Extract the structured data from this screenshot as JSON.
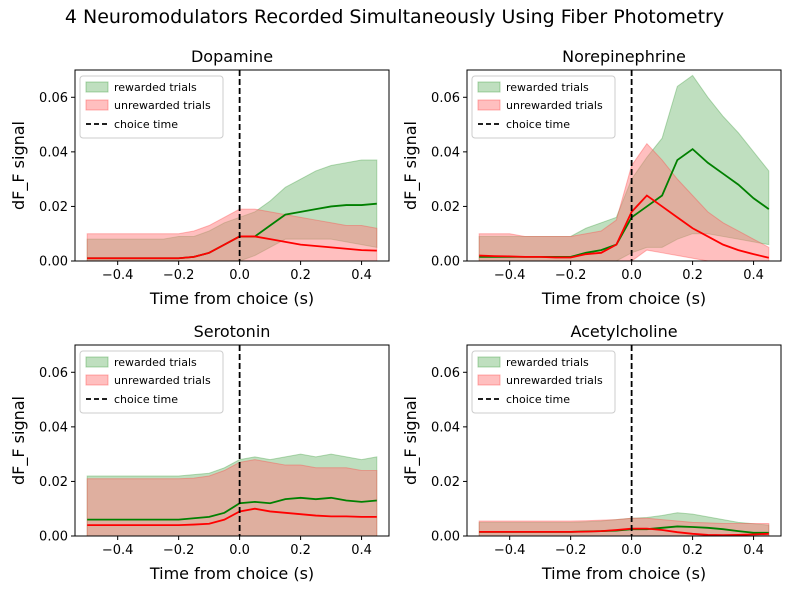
{
  "figure": {
    "suptitle": "4 Neuromodulators Recorded Simultaneously Using Fiber Photometry"
  },
  "colors": {
    "rewarded_line": "#008000",
    "rewarded_fill": "#7fc07f",
    "unrewarded_line": "#ff0000",
    "unrewarded_fill": "#ff8080",
    "choice_line": "#000000"
  },
  "chart_data": [
    {
      "type": "line",
      "title": "Dopamine",
      "xlabel": "Time from choice (s)",
      "ylabel": "dF_F signal",
      "xlim": [
        -0.54,
        0.49
      ],
      "ylim": [
        0,
        0.07
      ],
      "xticks": [
        "−0.4",
        "−0.2",
        "0.0",
        "0.2",
        "0.4"
      ],
      "yticks": [
        "0.00",
        "0.02",
        "0.04",
        "0.06"
      ],
      "grid": false,
      "legend": [
        "rewarded trials",
        "unrewarded trials",
        "choice time"
      ],
      "legend_position": "upper-left",
      "choice_time": 0,
      "x": [
        -0.5,
        -0.45,
        -0.4,
        -0.35,
        -0.3,
        -0.25,
        -0.2,
        -0.15,
        -0.1,
        -0.05,
        0,
        0.05,
        0.1,
        0.15,
        0.2,
        0.25,
        0.3,
        0.35,
        0.4,
        0.45
      ],
      "series": [
        {
          "name": "rewarded trials",
          "mean": [
            0.001,
            0.001,
            0.001,
            0.001,
            0.001,
            0.001,
            0.001,
            0.0015,
            0.003,
            0.006,
            0.009,
            0.009,
            0.013,
            0.017,
            0.018,
            0.019,
            0.02,
            0.0205,
            0.0205,
            0.021
          ],
          "upper": [
            0.008,
            0.008,
            0.008,
            0.008,
            0.008,
            0.008,
            0.009,
            0.009,
            0.011,
            0.014,
            0.016,
            0.018,
            0.022,
            0.027,
            0.03,
            0.033,
            0.035,
            0.036,
            0.037,
            0.037
          ],
          "lower": [
            0,
            0,
            0,
            0,
            0,
            0,
            0,
            0,
            0,
            0,
            0,
            0.002,
            0.005,
            0.008,
            0.008,
            0.008,
            0.008,
            0.007,
            0.006,
            0.005
          ]
        },
        {
          "name": "unrewarded trials",
          "mean": [
            0.001,
            0.001,
            0.001,
            0.001,
            0.001,
            0.001,
            0.001,
            0.0015,
            0.003,
            0.006,
            0.009,
            0.009,
            0.008,
            0.007,
            0.006,
            0.0055,
            0.005,
            0.0045,
            0.004,
            0.0038
          ],
          "upper": [
            0.01,
            0.01,
            0.01,
            0.01,
            0.01,
            0.01,
            0.01,
            0.011,
            0.013,
            0.016,
            0.019,
            0.019,
            0.018,
            0.017,
            0.016,
            0.015,
            0.014,
            0.013,
            0.013,
            0.012
          ],
          "lower": [
            0,
            0,
            0,
            0,
            0,
            0,
            0,
            0,
            0,
            0,
            0,
            0,
            0,
            0,
            0,
            0,
            0,
            0,
            0,
            0
          ]
        }
      ]
    },
    {
      "type": "line",
      "title": "Norepinephrine",
      "xlabel": "Time from choice (s)",
      "ylabel": "dF_F signal",
      "xlim": [
        -0.54,
        0.49
      ],
      "ylim": [
        0,
        0.07
      ],
      "xticks": [
        "−0.4",
        "−0.2",
        "0.0",
        "0.2",
        "0.4"
      ],
      "yticks": [
        "0.00",
        "0.02",
        "0.04",
        "0.06"
      ],
      "grid": false,
      "legend": [
        "rewarded trials",
        "unrewarded trials",
        "choice time"
      ],
      "legend_position": "upper-left",
      "choice_time": 0,
      "x": [
        -0.5,
        -0.45,
        -0.4,
        -0.35,
        -0.3,
        -0.25,
        -0.2,
        -0.15,
        -0.1,
        -0.05,
        0,
        0.05,
        0.1,
        0.15,
        0.2,
        0.25,
        0.3,
        0.35,
        0.4,
        0.45
      ],
      "series": [
        {
          "name": "rewarded trials",
          "mean": [
            0.0015,
            0.0015,
            0.0015,
            0.0015,
            0.0015,
            0.0015,
            0.0015,
            0.003,
            0.004,
            0.006,
            0.016,
            0.02,
            0.024,
            0.037,
            0.041,
            0.036,
            0.032,
            0.028,
            0.023,
            0.019
          ],
          "upper": [
            0.009,
            0.009,
            0.009,
            0.009,
            0.009,
            0.009,
            0.009,
            0.012,
            0.014,
            0.016,
            0.03,
            0.038,
            0.045,
            0.064,
            0.068,
            0.06,
            0.053,
            0.047,
            0.04,
            0.033
          ],
          "lower": [
            0,
            0,
            0,
            0,
            0,
            0,
            0,
            0,
            0,
            0,
            0.003,
            0.005,
            0.005,
            0.008,
            0.01,
            0.01,
            0.009,
            0.008,
            0.007,
            0.006
          ]
        },
        {
          "name": "unrewarded trials",
          "mean": [
            0.002,
            0.0018,
            0.0017,
            0.0015,
            0.0015,
            0.0013,
            0.0013,
            0.0025,
            0.003,
            0.006,
            0.018,
            0.024,
            0.02,
            0.016,
            0.012,
            0.009,
            0.006,
            0.004,
            0.0025,
            0.0012
          ],
          "upper": [
            0.01,
            0.01,
            0.01,
            0.009,
            0.009,
            0.009,
            0.009,
            0.01,
            0.011,
            0.015,
            0.035,
            0.043,
            0.037,
            0.03,
            0.024,
            0.018,
            0.014,
            0.011,
            0.008,
            0.005
          ],
          "lower": [
            0,
            0,
            0,
            0,
            0,
            0,
            0,
            0,
            0,
            0,
            0,
            0.004,
            0.003,
            0.002,
            0.001,
            0,
            0,
            0,
            0,
            0
          ]
        }
      ]
    },
    {
      "type": "line",
      "title": "Serotonin",
      "xlabel": "Time from choice (s)",
      "ylabel": "dF_F signal",
      "xlim": [
        -0.54,
        0.49
      ],
      "ylim": [
        0,
        0.07
      ],
      "xticks": [
        "−0.4",
        "−0.2",
        "0.0",
        "0.2",
        "0.4"
      ],
      "yticks": [
        "0.00",
        "0.02",
        "0.04",
        "0.06"
      ],
      "grid": false,
      "legend": [
        "rewarded trials",
        "unrewarded trials",
        "choice time"
      ],
      "legend_position": "upper-left",
      "choice_time": 0,
      "x": [
        -0.5,
        -0.45,
        -0.4,
        -0.35,
        -0.3,
        -0.25,
        -0.2,
        -0.15,
        -0.1,
        -0.05,
        0,
        0.05,
        0.1,
        0.15,
        0.2,
        0.25,
        0.3,
        0.35,
        0.4,
        0.45
      ],
      "series": [
        {
          "name": "rewarded trials",
          "mean": [
            0.006,
            0.006,
            0.006,
            0.006,
            0.006,
            0.006,
            0.006,
            0.0065,
            0.007,
            0.0085,
            0.012,
            0.0125,
            0.012,
            0.0135,
            0.014,
            0.0135,
            0.014,
            0.013,
            0.0125,
            0.013
          ],
          "upper": [
            0.022,
            0.022,
            0.022,
            0.022,
            0.022,
            0.022,
            0.022,
            0.0225,
            0.023,
            0.025,
            0.028,
            0.029,
            0.028,
            0.029,
            0.03,
            0.029,
            0.03,
            0.029,
            0.028,
            0.029
          ],
          "lower": [
            0,
            0,
            0,
            0,
            0,
            0,
            0,
            0,
            0,
            0,
            0,
            0,
            0,
            0,
            0,
            0,
            0,
            0,
            0,
            0
          ]
        },
        {
          "name": "unrewarded trials",
          "mean": [
            0.004,
            0.004,
            0.004,
            0.004,
            0.004,
            0.004,
            0.004,
            0.0042,
            0.0045,
            0.006,
            0.009,
            0.01,
            0.009,
            0.0085,
            0.008,
            0.0075,
            0.0072,
            0.0072,
            0.007,
            0.007
          ],
          "upper": [
            0.021,
            0.021,
            0.021,
            0.021,
            0.021,
            0.021,
            0.021,
            0.0212,
            0.022,
            0.024,
            0.027,
            0.028,
            0.027,
            0.026,
            0.026,
            0.025,
            0.025,
            0.025,
            0.024,
            0.024
          ],
          "lower": [
            0,
            0,
            0,
            0,
            0,
            0,
            0,
            0,
            0,
            0,
            0,
            0,
            0,
            0,
            0,
            0,
            0,
            0,
            0,
            0
          ]
        }
      ]
    },
    {
      "type": "line",
      "title": "Acetylcholine",
      "xlabel": "Time from choice (s)",
      "ylabel": "dF_F signal",
      "xlim": [
        -0.54,
        0.49
      ],
      "ylim": [
        0,
        0.07
      ],
      "xticks": [
        "−0.4",
        "−0.2",
        "0.0",
        "0.2",
        "0.4"
      ],
      "yticks": [
        "0.00",
        "0.02",
        "0.04",
        "0.06"
      ],
      "grid": false,
      "legend": [
        "rewarded trials",
        "unrewarded trials",
        "choice time"
      ],
      "legend_position": "upper-left",
      "choice_time": 0,
      "x": [
        -0.5,
        -0.45,
        -0.4,
        -0.35,
        -0.3,
        -0.25,
        -0.2,
        -0.15,
        -0.1,
        -0.05,
        0,
        0.05,
        0.1,
        0.15,
        0.2,
        0.25,
        0.3,
        0.35,
        0.4,
        0.45
      ],
      "series": [
        {
          "name": "rewarded trials",
          "mean": [
            0.0015,
            0.0015,
            0.0015,
            0.0015,
            0.0015,
            0.0015,
            0.0015,
            0.0017,
            0.0018,
            0.002,
            0.0025,
            0.0025,
            0.003,
            0.0035,
            0.0033,
            0.003,
            0.0025,
            0.0018,
            0.0012,
            0.0012
          ],
          "upper": [
            0.005,
            0.005,
            0.005,
            0.005,
            0.005,
            0.005,
            0.005,
            0.0052,
            0.0055,
            0.006,
            0.0065,
            0.0068,
            0.0075,
            0.0085,
            0.008,
            0.007,
            0.006,
            0.005,
            0.0045,
            0.004
          ],
          "lower": [
            0,
            0,
            0,
            0,
            0,
            0,
            0,
            0,
            0,
            0,
            0,
            0,
            0,
            0,
            0,
            0,
            0,
            0,
            0,
            0
          ]
        },
        {
          "name": "unrewarded trials",
          "mean": [
            0.0015,
            0.0015,
            0.0015,
            0.0015,
            0.0015,
            0.0015,
            0.0015,
            0.0016,
            0.0018,
            0.0022,
            0.0027,
            0.0027,
            0.0022,
            0.0014,
            0.0008,
            0.0004,
            0.0003,
            0.0004,
            0.0006,
            0.0008
          ],
          "upper": [
            0.0055,
            0.0055,
            0.0055,
            0.0055,
            0.0055,
            0.0055,
            0.0055,
            0.0056,
            0.0058,
            0.006,
            0.0065,
            0.0065,
            0.006,
            0.0055,
            0.005,
            0.0048,
            0.0046,
            0.0046,
            0.0046,
            0.0046
          ],
          "lower": [
            0,
            0,
            0,
            0,
            0,
            0,
            0,
            0,
            0,
            0,
            0,
            0,
            0,
            0,
            0,
            0,
            0,
            0,
            0,
            0
          ]
        }
      ]
    }
  ]
}
